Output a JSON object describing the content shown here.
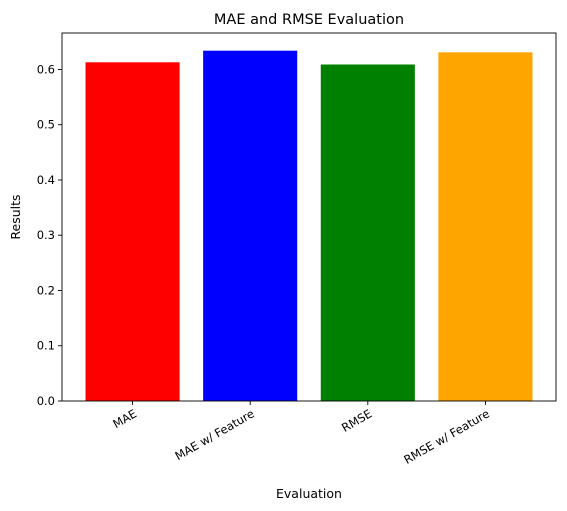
{
  "chart_data": {
    "type": "bar",
    "title": "MAE and RMSE Evaluation",
    "xlabel": "Evaluation",
    "ylabel": "Results",
    "categories": [
      "MAE",
      "MAE w/ Feature",
      "RMSE",
      "RMSE w/ Feature"
    ],
    "values": [
      0.613,
      0.634,
      0.609,
      0.631
    ],
    "colors": [
      "#ff0000",
      "#0000ff",
      "#008000",
      "#ffa500"
    ],
    "ylim": [
      0,
      0.666
    ],
    "yticks": [
      0.0,
      0.1,
      0.2,
      0.3,
      0.4,
      0.5,
      0.6
    ],
    "ytick_labels": [
      "0.0",
      "0.1",
      "0.2",
      "0.3",
      "0.4",
      "0.5",
      "0.6"
    ],
    "xtick_rotation_deg": 30,
    "grid": false,
    "legend": "none"
  }
}
